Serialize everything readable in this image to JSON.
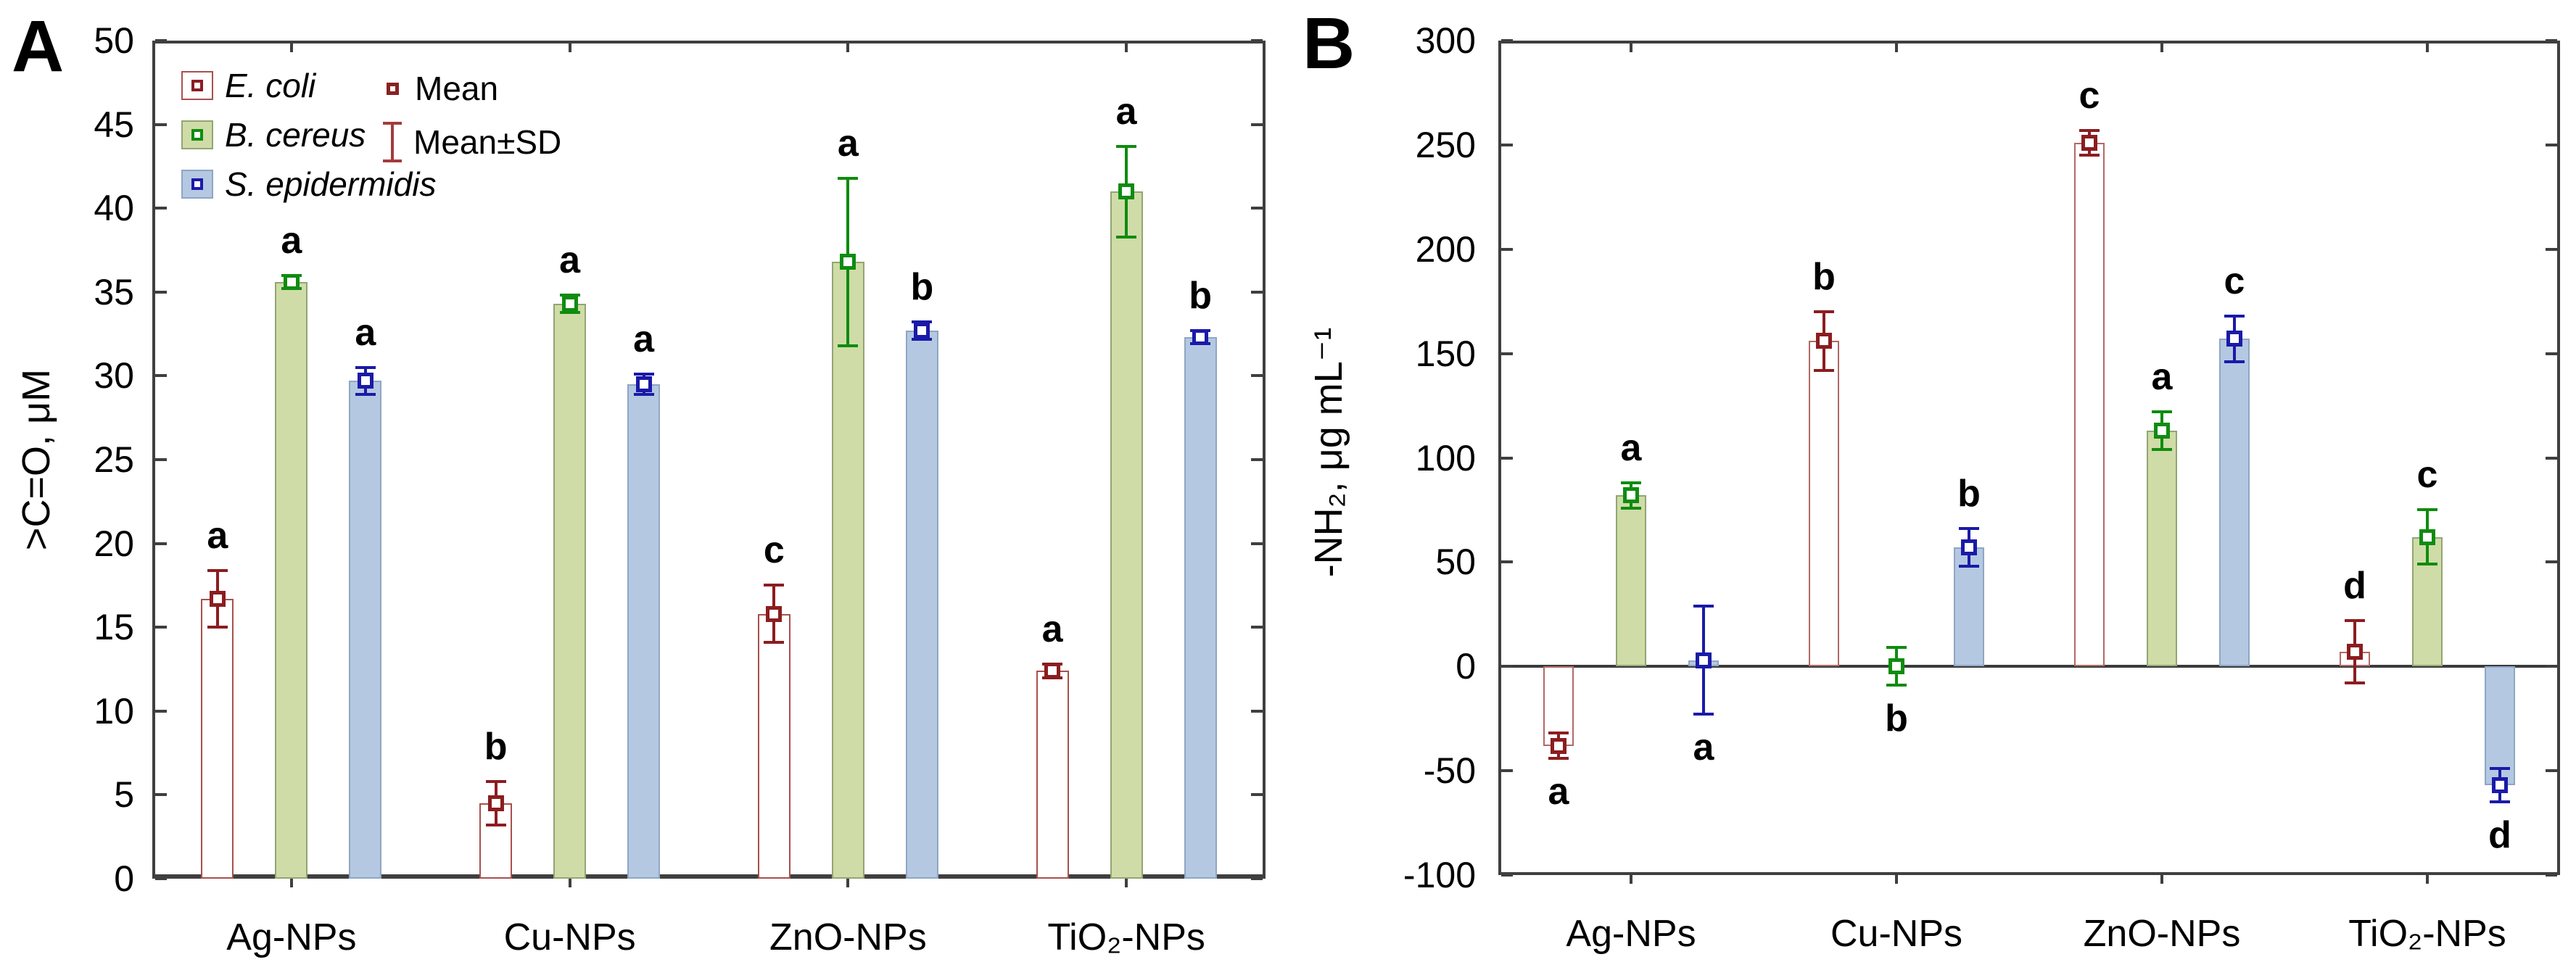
{
  "legend": {
    "mean_label": "Mean",
    "mean_sd_label": "Mean±SD",
    "mean_marker_color": "#8b2023",
    "error_icon_color": "#a33c3c"
  },
  "chart_data": [
    {
      "type": "bar",
      "panel": "A",
      "title": "",
      "xlabel": "",
      "ylabel": ">C=O, μM",
      "ylim": [
        0,
        50
      ],
      "ytick_step": 5,
      "grid": "off",
      "legend_position": "top-left-inside",
      "categories": [
        "Ag-NPs",
        "Cu-NPs",
        "ZnO-NPs",
        "TiO₂-NPs"
      ],
      "series": [
        {
          "name": "E. coli",
          "fill": "#ffffff",
          "border": "#a8504e",
          "marker": "#8b1d20",
          "values": [
            16.7,
            4.5,
            15.8,
            12.4
          ],
          "sd": [
            1.7,
            1.3,
            1.7,
            0.4
          ],
          "letters": [
            "a",
            "b",
            "c",
            "a"
          ],
          "letter_side": [
            "above",
            "above",
            "above",
            "above"
          ]
        },
        {
          "name": "B. cereus",
          "fill": "#cfdca8",
          "border": "#93a573",
          "marker": "#0f8c0f",
          "values": [
            35.6,
            34.3,
            36.8,
            41.0
          ],
          "sd": [
            0.4,
            0.5,
            5.0,
            2.7
          ],
          "letters": [
            "a",
            "a",
            "a",
            "a"
          ],
          "letter_side": [
            "above",
            "above",
            "above",
            "above"
          ]
        },
        {
          "name": "S. epidermidis",
          "fill": "#b5c8e2",
          "border": "#8fa6c4",
          "marker": "#1a1aa8",
          "values": [
            29.7,
            29.5,
            32.7,
            32.3
          ],
          "sd": [
            0.8,
            0.6,
            0.5,
            0.4
          ],
          "letters": [
            "a",
            "a",
            "b",
            "b"
          ],
          "letter_side": [
            "above",
            "above",
            "above",
            "above"
          ]
        }
      ]
    },
    {
      "type": "bar",
      "panel": "B",
      "title": "",
      "xlabel": "",
      "ylabel": "-NH₂, μg mL⁻¹",
      "ylim": [
        -100,
        300
      ],
      "ytick_step": 50,
      "grid": "off",
      "legend_position": "none",
      "categories": [
        "Ag-NPs",
        "Cu-NPs",
        "ZnO-NPs",
        "TiO₂-NPs"
      ],
      "series": [
        {
          "name": "E. coli",
          "fill": "#ffffff",
          "border": "#b06a66",
          "marker": "#8b1d20",
          "values": [
            -38,
            156,
            251,
            7
          ],
          "sd": [
            6,
            14,
            6,
            15
          ],
          "letters": [
            "a",
            "b",
            "c",
            "d"
          ],
          "letter_side": [
            "below",
            "above",
            "above",
            "above"
          ]
        },
        {
          "name": "B. cereus",
          "fill": "#cfdca8",
          "border": "#93a573",
          "marker": "#0f8c0f",
          "values": [
            82,
            0,
            113,
            62
          ],
          "sd": [
            6,
            9,
            9,
            13
          ],
          "letters": [
            "a",
            "b",
            "a",
            "c"
          ],
          "letter_side": [
            "above",
            "below",
            "above",
            "above"
          ]
        },
        {
          "name": "S. epidermidis",
          "fill": "#b5c8e2",
          "border": "#8fa6c4",
          "marker": "#1a1aa8",
          "values": [
            3,
            57,
            157,
            -57
          ],
          "sd": [
            26,
            9,
            11,
            8
          ],
          "letters": [
            "a",
            "b",
            "c",
            "d"
          ],
          "letter_side": [
            "below",
            "above",
            "above",
            "below"
          ]
        }
      ]
    }
  ]
}
